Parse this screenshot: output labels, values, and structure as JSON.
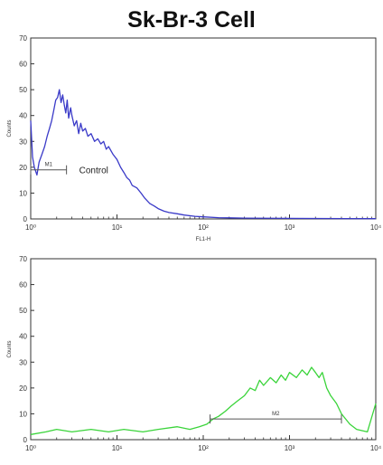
{
  "chart_data": [
    {
      "type": "area",
      "title": "Sk-Br-3 Cell",
      "xlabel": "FL1-H",
      "ylabel": "Counts",
      "x_scale": "log",
      "xlim": [
        1,
        10000
      ],
      "ylim": [
        0,
        70
      ],
      "x_ticks": [
        "10⁰",
        "10¹",
        "10²",
        "10³",
        "10⁴"
      ],
      "y_ticks": [
        "0",
        "10",
        "20",
        "30",
        "40",
        "50",
        "60",
        "70"
      ],
      "series_color": "#3a3ac8",
      "gate": {
        "label": "M1",
        "x_start": 1,
        "x_end": 2.6,
        "y": 19
      },
      "annotation": "Control",
      "x": [
        1,
        1.05,
        1.1,
        1.18,
        1.25,
        1.35,
        1.45,
        1.55,
        1.65,
        1.75,
        1.85,
        1.95,
        2.05,
        2.15,
        2.25,
        2.35,
        2.45,
        2.55,
        2.65,
        2.75,
        2.9,
        3.0,
        3.2,
        3.4,
        3.6,
        3.8,
        4.0,
        4.3,
        4.6,
        5.0,
        5.5,
        6.0,
        6.5,
        7.0,
        7.5,
        8.0,
        9.0,
        10,
        11,
        12,
        13,
        14,
        15,
        17,
        19,
        21,
        24,
        27,
        30,
        35,
        40,
        50,
        60,
        80,
        100,
        150,
        300,
        1000,
        10000
      ],
      "y": [
        38,
        24,
        20,
        17,
        22,
        25,
        28,
        32,
        35,
        38,
        42,
        46,
        47,
        50,
        45,
        48,
        44,
        41,
        46,
        39,
        43,
        40,
        36,
        38,
        33,
        37,
        34,
        35,
        32,
        33,
        30,
        31,
        29,
        30,
        27,
        28,
        25,
        23,
        20,
        18,
        16,
        15,
        13,
        12,
        10,
        8,
        6,
        5,
        4,
        3,
        2.5,
        2,
        1.5,
        1,
        0.8,
        0.5,
        0.3,
        0.2,
        0.1
      ]
    },
    {
      "type": "area",
      "xlabel": "",
      "ylabel": "Counts",
      "x_scale": "log",
      "xlim": [
        1,
        10000
      ],
      "ylim": [
        0,
        70
      ],
      "x_ticks": [
        "10⁰",
        "10¹",
        "10²",
        "10³",
        "10⁴"
      ],
      "y_ticks": [
        "0",
        "10",
        "20",
        "30",
        "40",
        "50",
        "60",
        "70"
      ],
      "series_color": "#3ad43a",
      "gate": {
        "label": "M2",
        "x_start": 120,
        "x_end": 4000,
        "y": 8
      },
      "x": [
        1,
        1.5,
        2,
        3,
        5,
        8,
        12,
        20,
        30,
        50,
        70,
        90,
        110,
        130,
        150,
        180,
        210,
        250,
        300,
        350,
        400,
        450,
        500,
        600,
        700,
        800,
        900,
        1000,
        1200,
        1400,
        1600,
        1800,
        2000,
        2200,
        2400,
        2700,
        3000,
        3500,
        4000,
        5000,
        6000,
        8000,
        10000
      ],
      "y": [
        2,
        3,
        4,
        3,
        4,
        3,
        4,
        3,
        4,
        5,
        4,
        5,
        6,
        8,
        9,
        11,
        13,
        15,
        17,
        20,
        19,
        23,
        21,
        24,
        22,
        25,
        23,
        26,
        24,
        27,
        25,
        28,
        26,
        24,
        26,
        20,
        17,
        14,
        10,
        6,
        4,
        3,
        14
      ]
    }
  ]
}
